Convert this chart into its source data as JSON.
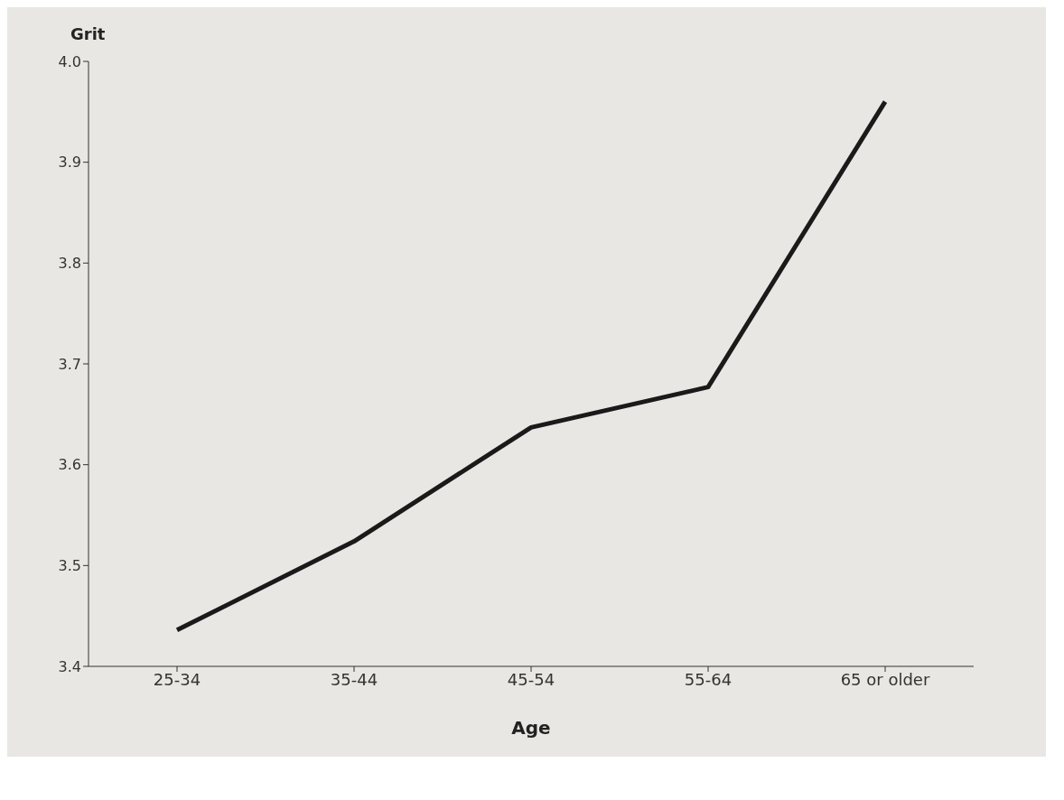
{
  "chart_data": {
    "type": "line",
    "xlabel": "Age",
    "ylabel": "Grit",
    "categories": [
      "25-34",
      "35-44",
      "45-54",
      "55-64",
      "65 or older"
    ],
    "series": [
      {
        "color": "#1a1a1a",
        "values": [
          3.436,
          3.524,
          3.637,
          3.677,
          3.96
        ]
      }
    ],
    "ylim": [
      3.4,
      4.0
    ],
    "yticks": [
      3.4,
      3.5,
      3.6,
      3.7,
      3.8,
      3.9,
      {
        "value": 4,
        "label": "4.0"
      }
    ],
    "grid": false,
    "marker": "none",
    "line_style": "solid"
  }
}
